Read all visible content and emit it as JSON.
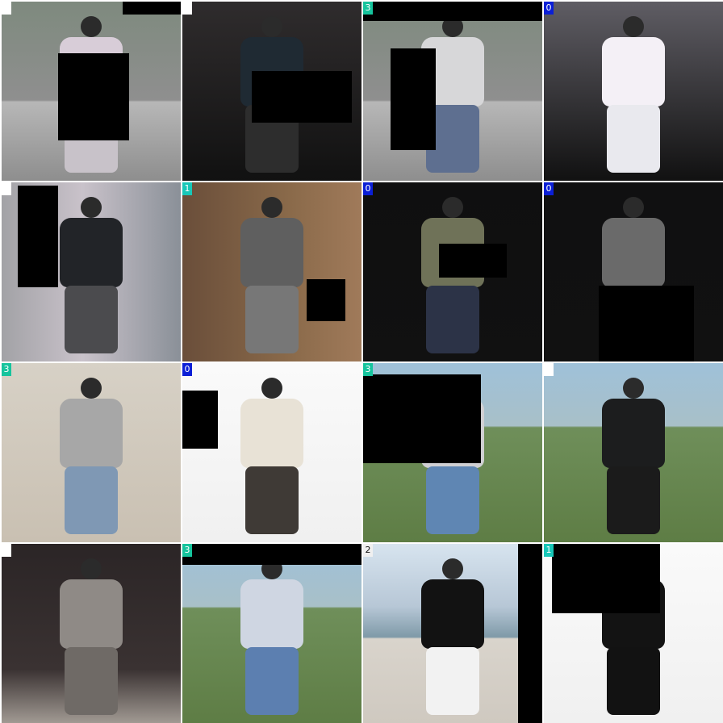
{
  "tiles": [
    {
      "badge": "",
      "bg": "#8f8a86",
      "top_color": "#d8cdd8",
      "bottom_color": "#c8c2c9",
      "scene": "street"
    },
    {
      "badge": "",
      "bg": "#2f2c2d",
      "top_color": "#1f2a33",
      "bottom_color": "#2d2d2d",
      "scene": "studio"
    },
    {
      "badge": "3",
      "bg": "#9fb0b5",
      "top_color": "#d7d7d9",
      "bottom_color": "#5e6f90",
      "scene": "street"
    },
    {
      "badge": "0",
      "bg": "#5f5d64",
      "top_color": "#f4f0f6",
      "bottom_color": "#e9e9ee",
      "scene": "studio"
    },
    {
      "badge": "",
      "bg": "#b9b1bb",
      "top_color": "#222428",
      "bottom_color": "#4b4b4e",
      "scene": "pixel"
    },
    {
      "badge": "1",
      "bg": "#6c5441",
      "top_color": "#5f5f5f",
      "bottom_color": "#777777",
      "scene": "indoor"
    },
    {
      "badge": "0",
      "bg": "#0f0f10",
      "top_color": "#6f7258",
      "bottom_color": "#2c3347",
      "scene": "studio"
    },
    {
      "badge": "0",
      "bg": "#101011",
      "top_color": "#6a6a6a",
      "bottom_color": "#1b1b1b",
      "scene": "studio"
    },
    {
      "badge": "3",
      "bg": "#cfc8bd",
      "top_color": "#a7a7a7",
      "bottom_color": "#7f98b4",
      "scene": "wall"
    },
    {
      "badge": "0",
      "bg": "#f3f3f3",
      "top_color": "#e8e2d6",
      "bottom_color": "#3f3a36",
      "scene": "studio-light"
    },
    {
      "badge": "3",
      "bg": "#6b8a4a",
      "top_color": "#d0d0d3",
      "bottom_color": "#5f86b3",
      "scene": "park"
    },
    {
      "badge": "",
      "bg": "#6f8f5a",
      "top_color": "#1c1d1e",
      "bottom_color": "#1b1b1b",
      "scene": "park"
    },
    {
      "badge": "",
      "bg": "#3a3232",
      "top_color": "#8f8a86",
      "bottom_color": "#6f6a66",
      "scene": "room"
    },
    {
      "badge": "3",
      "bg": "#4f6b3a",
      "top_color": "#cfd6e2",
      "bottom_color": "#5c7fb0",
      "scene": "park"
    },
    {
      "badge": "2",
      "bg": "#b7c7d6",
      "top_color": "#121212",
      "bottom_color": "#f2f2f2",
      "scene": "beach"
    },
    {
      "badge": "1",
      "bg": "#efefef",
      "top_color": "#131313",
      "bottom_color": "#121212",
      "scene": "studio-light"
    }
  ],
  "badge_colors": {
    "0": "#0b1fd6",
    "1": "#18c7b8",
    "2": "#f0f0f0",
    "3": "#16c49d",
    "": "#ffffff"
  }
}
